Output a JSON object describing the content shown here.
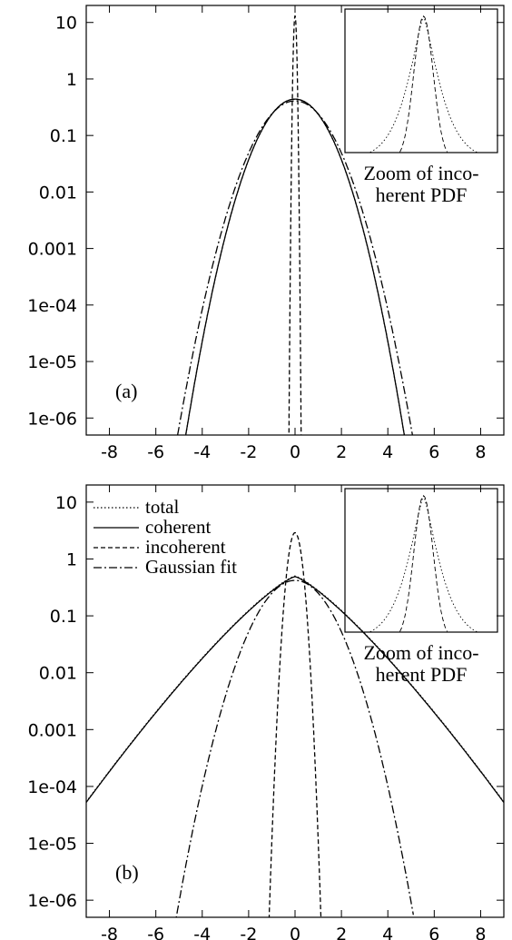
{
  "chart_data": [
    {
      "type": "line",
      "panel_label": "(a)",
      "yscale": "log",
      "xlim": [
        -9,
        9
      ],
      "ylim": [
        5e-07,
        20
      ],
      "xticks": [
        -8,
        -6,
        -4,
        -2,
        0,
        2,
        4,
        6,
        8
      ],
      "yticks": [
        10,
        1,
        0.1,
        0.01,
        0.001,
        0.0001,
        1e-05,
        1e-06
      ],
      "x_tick_labels": [
        "-8",
        "-6",
        "-4",
        "-2",
        "0",
        "2",
        "4",
        "6",
        "8"
      ],
      "y_tick_labels": [
        "10",
        "1",
        "0.1",
        "0.01",
        "0.001",
        "1e-04",
        "1e-05",
        "1e-06"
      ],
      "legend": null,
      "series": [
        {
          "style": "dotted",
          "peak": 0.44,
          "sigma": 0.9,
          "tail_power": 2.0,
          "x_range": [
            -5.9,
            6.2
          ]
        },
        {
          "style": "solid",
          "peak": 0.44,
          "sigma": 0.9,
          "tail_power": 2.0,
          "x_range": [
            -5.9,
            6.2
          ]
        },
        {
          "style": "dashed",
          "peak": 13,
          "sigma": 0.045,
          "tail_power": 2.0,
          "x_range": [
            -0.4,
            0.3
          ]
        },
        {
          "style": "dashdot",
          "peak": 0.41,
          "sigma": 0.97,
          "tail_power": 2.0,
          "x_range": [
            -5.4,
            5.2
          ]
        }
      ],
      "inset": {
        "caption_lines": [
          "Zoom of inco-",
          "herent PDF"
        ],
        "series": [
          {
            "style": "dotted",
            "width": 0.3,
            "tail_power": 1.3
          },
          {
            "style": "dashed",
            "width": 0.18,
            "tail_power": 2.0
          }
        ]
      }
    },
    {
      "type": "line",
      "panel_label": "(b)",
      "yscale": "log",
      "xlim": [
        -9,
        9
      ],
      "ylim": [
        5e-07,
        20
      ],
      "xticks": [
        -8,
        -6,
        -4,
        -2,
        0,
        2,
        4,
        6,
        8
      ],
      "yticks": [
        10,
        1,
        0.1,
        0.01,
        0.001,
        0.0001,
        1e-05,
        1e-06
      ],
      "x_tick_labels": [
        "-8",
        "-6",
        "-4",
        "-2",
        "0",
        "2",
        "4",
        "6",
        "8"
      ],
      "y_tick_labels": [
        "10",
        "1",
        "0.1",
        "0.01",
        "0.001",
        "1e-04",
        "1e-05",
        "1e-06"
      ],
      "legend": {
        "placement": "top-left",
        "entries": [
          {
            "label": "total",
            "style": "dotted"
          },
          {
            "label": "coherent",
            "style": "solid"
          },
          {
            "label": "incoherent",
            "style": "dashed"
          },
          {
            "label": "Gaussian fit",
            "style": "dashdot"
          }
        ]
      },
      "series": [
        {
          "name": "total",
          "style": "dotted",
          "peak": 0.5,
          "sigma": 0.88,
          "tail_power": 1.25,
          "x_range": [
            -9,
            9
          ]
        },
        {
          "name": "coherent",
          "style": "solid",
          "peak": 0.49,
          "sigma": 0.88,
          "tail_power": 1.25,
          "x_range": [
            -9,
            9
          ]
        },
        {
          "name": "incoherent",
          "style": "dashed",
          "peak": 2.9,
          "sigma": 0.2,
          "tail_power": 2.0,
          "x_range": [
            -1.45,
            1.25
          ]
        },
        {
          "name": "Gaussian fit",
          "style": "dashdot",
          "peak": 0.42,
          "sigma": 0.98,
          "tail_power": 2.0,
          "x_range": [
            -5.3,
            5.1
          ]
        }
      ],
      "inset": {
        "caption_lines": [
          "Zoom of inco-",
          "herent PDF"
        ],
        "series": [
          {
            "style": "dotted",
            "width": 0.3,
            "tail_power": 1.3
          },
          {
            "style": "dashed",
            "width": 0.18,
            "tail_power": 2.0
          }
        ]
      }
    }
  ]
}
